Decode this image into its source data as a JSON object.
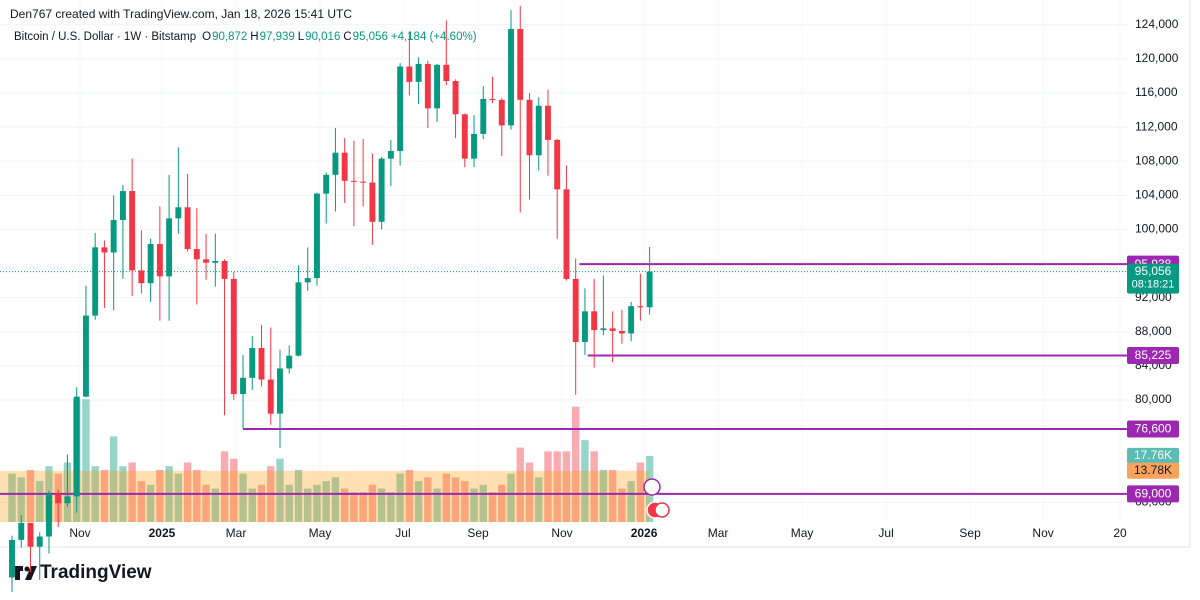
{
  "chart_data": {
    "type": "candlestick",
    "subtitle": "Den767 created with TradingView.com, Jan 18, 2026 15:41 UTC",
    "title": "Bitcoin / U.S. Dollar · 1W · Bitstamp",
    "legend": [
      {
        "key": "O",
        "value": 90872,
        "label": "90,872"
      },
      {
        "key": "H",
        "value": 97939,
        "label": "97,939"
      },
      {
        "key": "L",
        "value": 90016,
        "label": "90,016"
      },
      {
        "key": "C",
        "value": 95056,
        "label": "95,056"
      }
    ],
    "change": {
      "value": 4184,
      "percent": 4.6,
      "label": "+4,184 (+4.60%)"
    },
    "x": [
      0,
      1,
      2,
      3,
      4,
      5,
      6,
      7,
      8,
      9,
      10,
      11,
      12,
      13,
      14,
      15,
      16,
      17,
      18,
      19,
      20,
      21,
      22,
      23,
      24,
      25,
      26,
      27,
      28,
      29,
      30,
      31,
      32,
      33,
      34,
      35,
      36,
      37,
      38,
      39,
      40,
      41,
      42,
      43,
      44,
      45,
      46,
      47,
      48,
      49,
      50,
      51,
      52,
      53,
      54,
      55,
      56,
      57,
      58,
      59,
      60,
      61,
      62,
      63,
      64,
      65,
      66,
      67,
      68,
      69
    ],
    "open": [
      59200,
      63600,
      65600,
      62800,
      64000,
      69000,
      67900,
      68700,
      80400,
      89900,
      97900,
      97300,
      101100,
      104500,
      95200,
      93700,
      98300,
      94500,
      101300,
      102600,
      97700,
      96500,
      96100,
      96300,
      94200,
      80700,
      82600,
      86100,
      82400,
      78400,
      83700,
      85200,
      93800,
      94300,
      104200,
      106400,
      109000,
      105700,
      105600,
      105500,
      100900,
      108300,
      109200,
      119100,
      117300,
      119400,
      114200,
      119300,
      117400,
      113500,
      108300,
      111200,
      115300,
      115200,
      112200,
      123500,
      115200,
      108700,
      114500,
      110500,
      104700,
      94200,
      86800,
      90400,
      88200,
      88400,
      88100,
      87800,
      91000,
      90872
    ],
    "high": [
      64100,
      66500,
      65600,
      64500,
      69400,
      69500,
      73600,
      81500,
      93400,
      99600,
      98700,
      104000,
      105200,
      108300,
      99900,
      98900,
      102700,
      106400,
      109600,
      106500,
      102500,
      99500,
      99500,
      96500,
      95000,
      85300,
      87500,
      88800,
      88500,
      85900,
      86400,
      95800,
      97900,
      104300,
      106700,
      111900,
      110700,
      110400,
      110600,
      108900,
      108500,
      110500,
      119500,
      123200,
      120200,
      119800,
      119400,
      124500,
      117600,
      113600,
      113400,
      116800,
      117900,
      115400,
      125700,
      126200,
      116000,
      115500,
      116400,
      110600,
      107500,
      96600,
      93100,
      94200,
      94600,
      90400,
      90600,
      91500,
      94800,
      97939
    ],
    "low": [
      57500,
      62700,
      59800,
      58900,
      62000,
      65100,
      67500,
      66800,
      80300,
      89400,
      90800,
      90500,
      94200,
      92200,
      92500,
      91500,
      89300,
      89300,
      99500,
      97400,
      91200,
      94100,
      93300,
      78200,
      80000,
      76600,
      81200,
      81600,
      77100,
      74400,
      83100,
      85100,
      92800,
      93400,
      100700,
      102100,
      103100,
      100400,
      102700,
      98200,
      100000,
      105100,
      107500,
      115700,
      114700,
      111900,
      112600,
      116900,
      110700,
      107300,
      107300,
      110600,
      114800,
      108600,
      111700,
      102000,
      103500,
      106900,
      106300,
      98900,
      94000,
      80600,
      85300,
      83800,
      87600,
      84400,
      86600,
      86900,
      89300,
      90016
    ],
    "close": [
      63600,
      65600,
      62800,
      64000,
      69000,
      67900,
      68700,
      80400,
      89900,
      97900,
      97300,
      101100,
      104500,
      95200,
      93700,
      98300,
      94500,
      101300,
      102600,
      97700,
      96500,
      96100,
      96300,
      94200,
      80700,
      82600,
      86100,
      82400,
      78400,
      83700,
      85200,
      93800,
      94300,
      104200,
      106400,
      109000,
      105700,
      105600,
      105500,
      100900,
      108300,
      109200,
      119100,
      117300,
      119400,
      114200,
      119300,
      117400,
      113500,
      108300,
      111200,
      115300,
      115200,
      112200,
      123500,
      115200,
      108700,
      114500,
      110500,
      104700,
      94200,
      86800,
      90400,
      88200,
      88400,
      88100,
      87800,
      91000,
      90872,
      95056
    ],
    "up_color": "#089981",
    "down_color": "#f23645",
    "xlim": [
      -1.3,
      120.77
    ],
    "xticks": [
      {
        "value": 7.36,
        "label": "Nov"
      },
      {
        "value": 16.23,
        "label": "2025"
      },
      {
        "value": 24.24,
        "label": "Mar"
      },
      {
        "value": 33.33,
        "label": "May"
      },
      {
        "value": 42.31,
        "label": "Jul"
      },
      {
        "value": 50.43,
        "label": "Sep"
      },
      {
        "value": 59.52,
        "label": "Nov"
      },
      {
        "value": 68.4,
        "label": "2026"
      },
      {
        "value": 76.41,
        "label": "Mar"
      },
      {
        "value": 85.5,
        "label": "May"
      },
      {
        "value": 94.59,
        "label": "Jul"
      },
      {
        "value": 103.68,
        "label": "Sep"
      },
      {
        "value": 111.58,
        "label": "Nov"
      },
      {
        "value": 119.91,
        "label": "20"
      }
    ],
    "ylim": [
      65700,
      126900
    ],
    "yticks": [
      {
        "value": 124000,
        "label": "124,000"
      },
      {
        "value": 120000,
        "label": "120,000"
      },
      {
        "value": 116000,
        "label": "116,000"
      },
      {
        "value": 112000,
        "label": "112,000"
      },
      {
        "value": 108000,
        "label": "108,000"
      },
      {
        "value": 104000,
        "label": "104,000"
      },
      {
        "value": 100000,
        "label": "100,000"
      },
      {
        "value": 92000,
        "label": "92,000"
      },
      {
        "value": 88000,
        "label": "88,000"
      },
      {
        "value": 84000,
        "label": "84,000"
      },
      {
        "value": 80000,
        "label": "80,000"
      },
      {
        "value": 68000,
        "label": "68,000"
      }
    ],
    "grid": true,
    "last_price": {
      "value": 95056,
      "label": "95,056",
      "countdown": "08:18:21"
    },
    "levels": [
      {
        "value": 95938,
        "label": "95,938"
      },
      {
        "value": 85225,
        "label": "85,225"
      },
      {
        "value": 76600,
        "label": "76,600"
      },
      {
        "value": 69000,
        "label": "69,000"
      }
    ],
    "level_color": "#9c27b0",
    "volume": {
      "values": [
        13,
        12,
        14,
        11,
        15,
        13,
        16,
        33,
        33,
        15,
        14,
        23,
        15,
        16,
        11,
        10,
        14,
        15,
        13,
        16,
        14,
        10,
        9,
        19,
        17,
        13,
        9,
        10,
        15,
        17,
        10,
        14,
        9,
        10,
        11,
        12,
        9,
        8,
        8,
        10,
        9,
        8,
        13,
        14,
        11,
        12,
        9,
        13,
        12,
        11,
        9,
        10,
        8,
        10,
        13,
        20,
        16,
        12,
        19,
        19,
        19,
        31,
        22,
        19,
        14,
        14,
        9,
        11,
        16,
        17.76
      ],
      "value_labels": [
        null,
        null,
        null,
        null,
        null,
        null,
        null,
        null,
        null,
        null,
        null,
        null,
        null,
        null,
        null,
        null,
        null,
        null,
        null,
        null,
        null,
        null,
        null,
        null,
        null,
        null,
        null,
        null,
        null,
        null,
        null,
        null,
        null,
        null,
        null,
        null,
        null,
        null,
        null,
        null,
        null,
        null,
        null,
        null,
        null,
        null,
        null,
        null,
        null,
        null,
        null,
        null,
        null,
        null,
        null,
        null,
        null,
        null,
        null,
        null,
        null,
        null,
        null,
        null,
        null,
        null,
        null,
        null,
        null,
        "17.76K"
      ],
      "ma": {
        "value": 13.78,
        "label": "13.78K"
      }
    }
  },
  "footer": {
    "brand": "TradingView"
  }
}
